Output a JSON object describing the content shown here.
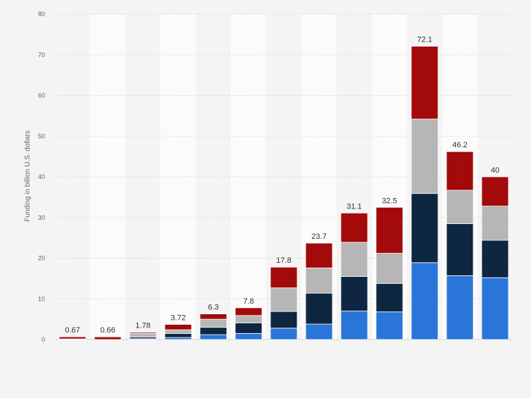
{
  "chart_data": {
    "type": "bar",
    "stacked": true,
    "ylabel": "Funding in billion U.S. dollars",
    "ylim": [
      0,
      80
    ],
    "yticks": [
      0,
      10,
      20,
      30,
      40,
      50,
      60,
      70,
      80
    ],
    "grid": true,
    "legend": "none",
    "colors": {
      "s1": "#2a75d8",
      "s2": "#0e2640",
      "s3": "#b6b6b6",
      "s4": "#a30a0a"
    },
    "totals": [
      "0.67",
      "0.66",
      "1.78",
      "3.72",
      "6.3",
      "7.8",
      "17.8",
      "23.7",
      "31.1",
      "32.5",
      "72.1",
      "46.2",
      "40"
    ],
    "segments": [
      [
        0.05,
        0.05,
        0.05,
        0.52
      ],
      [
        0.0,
        0.0,
        0.0,
        0.66
      ],
      [
        0.2,
        0.4,
        0.9,
        0.28
      ],
      [
        0.5,
        1.0,
        0.9,
        1.32
      ],
      [
        1.2,
        1.8,
        2.0,
        1.3
      ],
      [
        1.5,
        2.6,
        1.8,
        1.9
      ],
      [
        2.8,
        4.1,
        5.8,
        5.1
      ],
      [
        3.8,
        7.6,
        6.2,
        6.1
      ],
      [
        7.0,
        8.5,
        8.4,
        7.2
      ],
      [
        6.8,
        7.0,
        7.4,
        11.3
      ],
      [
        18.9,
        17.0,
        18.3,
        17.9
      ],
      [
        15.7,
        12.8,
        8.2,
        9.5
      ],
      [
        15.2,
        9.2,
        8.4,
        7.2
      ]
    ]
  }
}
